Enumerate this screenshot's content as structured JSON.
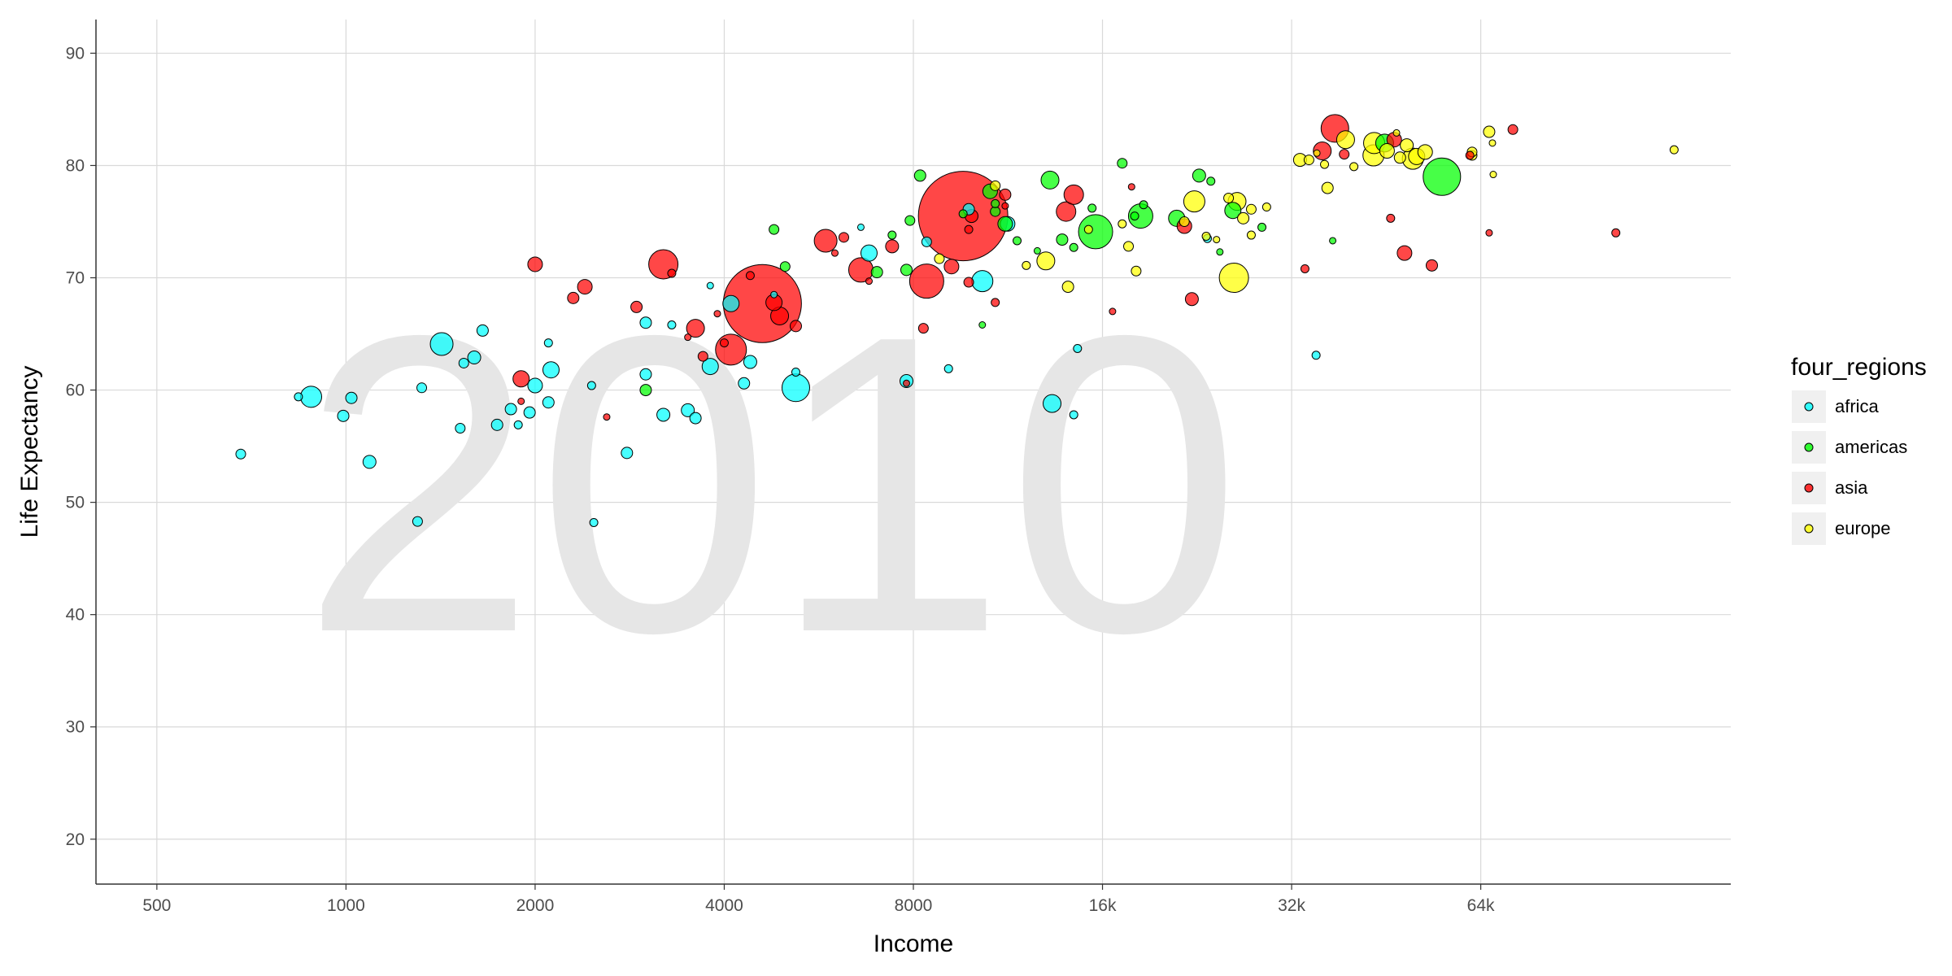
{
  "chart_data": {
    "type": "scatter",
    "title": "",
    "year_label": "2010",
    "xlabel": "Income",
    "ylabel": "Life Expectancy",
    "x_scale": "log2",
    "xlim": [
      400,
      160000
    ],
    "ylim": [
      16,
      93
    ],
    "x_ticks": [
      {
        "value": 500,
        "label": "500"
      },
      {
        "value": 1000,
        "label": "1000"
      },
      {
        "value": 2000,
        "label": "2000"
      },
      {
        "value": 4000,
        "label": "4000"
      },
      {
        "value": 8000,
        "label": "8000"
      },
      {
        "value": 16000,
        "label": "16k"
      },
      {
        "value": 32000,
        "label": "32k"
      },
      {
        "value": 64000,
        "label": "64k"
      }
    ],
    "y_ticks": [
      20,
      30,
      40,
      50,
      60,
      70,
      80,
      90
    ],
    "grid": true,
    "legend": {
      "title": "four_regions",
      "position": "right"
    },
    "series": [
      {
        "name": "africa",
        "color": "#00ffff",
        "points": [
          [
            680,
            54.3,
            6
          ],
          [
            840,
            59.4,
            5
          ],
          [
            880,
            59.4,
            13
          ],
          [
            990,
            57.7,
            7
          ],
          [
            1020,
            59.3,
            7
          ],
          [
            1090,
            53.6,
            8
          ],
          [
            1300,
            48.3,
            6
          ],
          [
            1320,
            60.2,
            6
          ],
          [
            1420,
            64.1,
            14
          ],
          [
            1520,
            56.6,
            6
          ],
          [
            1540,
            62.4,
            6
          ],
          [
            1600,
            62.9,
            8
          ],
          [
            1650,
            65.3,
            7
          ],
          [
            1740,
            56.9,
            7
          ],
          [
            1830,
            58.3,
            7
          ],
          [
            1880,
            56.9,
            5
          ],
          [
            1960,
            58,
            7
          ],
          [
            2000,
            60.4,
            9
          ],
          [
            2100,
            64.2,
            5
          ],
          [
            2100,
            58.9,
            7
          ],
          [
            2120,
            61.8,
            10
          ],
          [
            2460,
            60.4,
            5
          ],
          [
            2480,
            48.2,
            5
          ],
          [
            2800,
            54.4,
            7
          ],
          [
            3000,
            61.4,
            7
          ],
          [
            3000,
            66,
            7
          ],
          [
            3200,
            57.8,
            8
          ],
          [
            3300,
            65.8,
            5
          ],
          [
            3500,
            58.2,
            8
          ],
          [
            3600,
            57.5,
            7
          ],
          [
            3800,
            69.3,
            4
          ],
          [
            3800,
            62.1,
            10
          ],
          [
            4100,
            67.7,
            10
          ],
          [
            4300,
            60.6,
            7
          ],
          [
            4400,
            62.5,
            8
          ],
          [
            4800,
            68.5,
            4
          ],
          [
            5200,
            61.6,
            5
          ],
          [
            5200,
            60.2,
            17
          ],
          [
            6600,
            74.5,
            4
          ],
          [
            6800,
            72.2,
            10
          ],
          [
            7800,
            60.8,
            8
          ],
          [
            8400,
            73.2,
            6
          ],
          [
            9100,
            61.9,
            5
          ],
          [
            9800,
            76.1,
            7
          ],
          [
            10300,
            69.7,
            13
          ],
          [
            11300,
            74.8,
            9
          ],
          [
            13300,
            58.8,
            11
          ],
          [
            14400,
            57.8,
            5
          ],
          [
            14600,
            63.7,
            5
          ],
          [
            23500,
            73.5,
            5
          ],
          [
            35000,
            63.1,
            5
          ]
        ]
      },
      {
        "name": "americas",
        "color": "#00ff00",
        "points": [
          [
            3000,
            60,
            7
          ],
          [
            4800,
            74.3,
            6
          ],
          [
            5000,
            71,
            6
          ],
          [
            7000,
            70.5,
            7
          ],
          [
            7400,
            73.8,
            5
          ],
          [
            7800,
            70.7,
            7
          ],
          [
            7900,
            75.1,
            6
          ],
          [
            8200,
            79.1,
            7
          ],
          [
            9600,
            75.7,
            5
          ],
          [
            10300,
            65.8,
            4
          ],
          [
            10600,
            77.7,
            9
          ],
          [
            10800,
            75.9,
            6
          ],
          [
            10800,
            76.6,
            5
          ],
          [
            11200,
            74.8,
            9
          ],
          [
            11700,
            73.3,
            5
          ],
          [
            12600,
            72.4,
            4
          ],
          [
            13200,
            78.7,
            11
          ],
          [
            13800,
            73.4,
            7
          ],
          [
            14400,
            72.7,
            5
          ],
          [
            15400,
            76.2,
            5
          ],
          [
            15600,
            74.1,
            21
          ],
          [
            17200,
            80.2,
            6
          ],
          [
            18000,
            75.5,
            5
          ],
          [
            18400,
            75.5,
            15
          ],
          [
            18600,
            76.5,
            5
          ],
          [
            21000,
            75.3,
            10
          ],
          [
            22800,
            79.1,
            8
          ],
          [
            23800,
            78.6,
            5
          ],
          [
            24600,
            72.3,
            4
          ],
          [
            25800,
            76,
            10
          ],
          [
            28700,
            74.5,
            5
          ],
          [
            37200,
            73.3,
            4
          ],
          [
            45000,
            82,
            11
          ],
          [
            55500,
            79,
            23
          ]
        ]
      },
      {
        "name": "asia",
        "color": "#ff0000",
        "points": [
          [
            1900,
            61,
            10
          ],
          [
            1900,
            59,
            4
          ],
          [
            2000,
            71.2,
            9
          ],
          [
            2300,
            68.2,
            7
          ],
          [
            2400,
            69.2,
            9
          ],
          [
            2600,
            57.6,
            4
          ],
          [
            2900,
            67.4,
            7
          ],
          [
            3200,
            71.2,
            18
          ],
          [
            3300,
            70.4,
            5
          ],
          [
            3500,
            64.7,
            4
          ],
          [
            3600,
            65.5,
            11
          ],
          [
            3700,
            63,
            6
          ],
          [
            3900,
            66.8,
            4
          ],
          [
            4000,
            64.2,
            5
          ],
          [
            4100,
            63.6,
            19
          ],
          [
            4400,
            70.2,
            5
          ],
          [
            4600,
            67.7,
            48
          ],
          [
            4800,
            67.8,
            10
          ],
          [
            4900,
            66.6,
            11
          ],
          [
            5200,
            65.7,
            7
          ],
          [
            5800,
            73.3,
            14
          ],
          [
            6000,
            72.2,
            4
          ],
          [
            6200,
            73.6,
            6
          ],
          [
            6600,
            70.7,
            15
          ],
          [
            6800,
            69.7,
            4
          ],
          [
            7400,
            72.8,
            8
          ],
          [
            7800,
            60.6,
            4
          ],
          [
            8300,
            65.5,
            6
          ],
          [
            8400,
            69.7,
            21
          ],
          [
            9200,
            71,
            9
          ],
          [
            9600,
            75.5,
            55
          ],
          [
            9800,
            74.3,
            5
          ],
          [
            9800,
            69.6,
            6
          ],
          [
            9900,
            75.5,
            8
          ],
          [
            10800,
            67.8,
            5
          ],
          [
            11200,
            77.4,
            7
          ],
          [
            11200,
            76.4,
            4
          ],
          [
            14000,
            75.9,
            12
          ],
          [
            14400,
            77.4,
            12
          ],
          [
            16600,
            67,
            4
          ],
          [
            17800,
            78.1,
            4
          ],
          [
            21600,
            74.6,
            9
          ],
          [
            22200,
            68.1,
            8
          ],
          [
            33600,
            70.8,
            5
          ],
          [
            35800,
            81.3,
            11
          ],
          [
            37500,
            83.3,
            17
          ],
          [
            38800,
            81,
            6
          ],
          [
            46000,
            75.3,
            5
          ],
          [
            46600,
            82.3,
            9
          ],
          [
            48400,
            72.2,
            9
          ],
          [
            53500,
            71.1,
            7
          ],
          [
            61500,
            80.9,
            5
          ],
          [
            66000,
            74,
            4
          ],
          [
            72000,
            83.2,
            6
          ],
          [
            105000,
            74,
            5
          ]
        ]
      },
      {
        "name": "europe",
        "color": "#ffff00",
        "points": [
          [
            8800,
            71.7,
            6
          ],
          [
            10800,
            78.2,
            6
          ],
          [
            12100,
            71.1,
            5
          ],
          [
            13000,
            71.5,
            11
          ],
          [
            14100,
            69.2,
            7
          ],
          [
            15200,
            74.3,
            5
          ],
          [
            17200,
            74.8,
            5
          ],
          [
            17600,
            72.8,
            6
          ],
          [
            18100,
            70.6,
            6
          ],
          [
            21600,
            75,
            6
          ],
          [
            22400,
            76.8,
            13
          ],
          [
            23400,
            73.7,
            5
          ],
          [
            24300,
            73.4,
            4
          ],
          [
            25400,
            77.1,
            6
          ],
          [
            25900,
            70,
            18
          ],
          [
            26200,
            76.8,
            11
          ],
          [
            26800,
            75.3,
            7
          ],
          [
            27600,
            76.1,
            6
          ],
          [
            27600,
            73.8,
            5
          ],
          [
            29200,
            76.3,
            5
          ],
          [
            33000,
            80.5,
            8
          ],
          [
            34100,
            80.5,
            6
          ],
          [
            35100,
            81.1,
            4
          ],
          [
            36100,
            80.1,
            5
          ],
          [
            36500,
            78,
            7
          ],
          [
            39000,
            82.3,
            11
          ],
          [
            40200,
            79.9,
            5
          ],
          [
            43200,
            80.9,
            13
          ],
          [
            43300,
            82,
            13
          ],
          [
            45400,
            81.3,
            9
          ],
          [
            47000,
            82.9,
            4
          ],
          [
            47600,
            80.7,
            7
          ],
          [
            48800,
            81.8,
            8
          ],
          [
            49900,
            80.6,
            13
          ],
          [
            50600,
            80.8,
            10
          ],
          [
            52200,
            81.2,
            9
          ],
          [
            62000,
            80.9,
            6
          ],
          [
            62000,
            81.2,
            6
          ],
          [
            66000,
            83,
            7
          ],
          [
            66800,
            82,
            4
          ],
          [
            67000,
            79.2,
            4
          ],
          [
            130000,
            81.4,
            5
          ]
        ]
      }
    ]
  }
}
